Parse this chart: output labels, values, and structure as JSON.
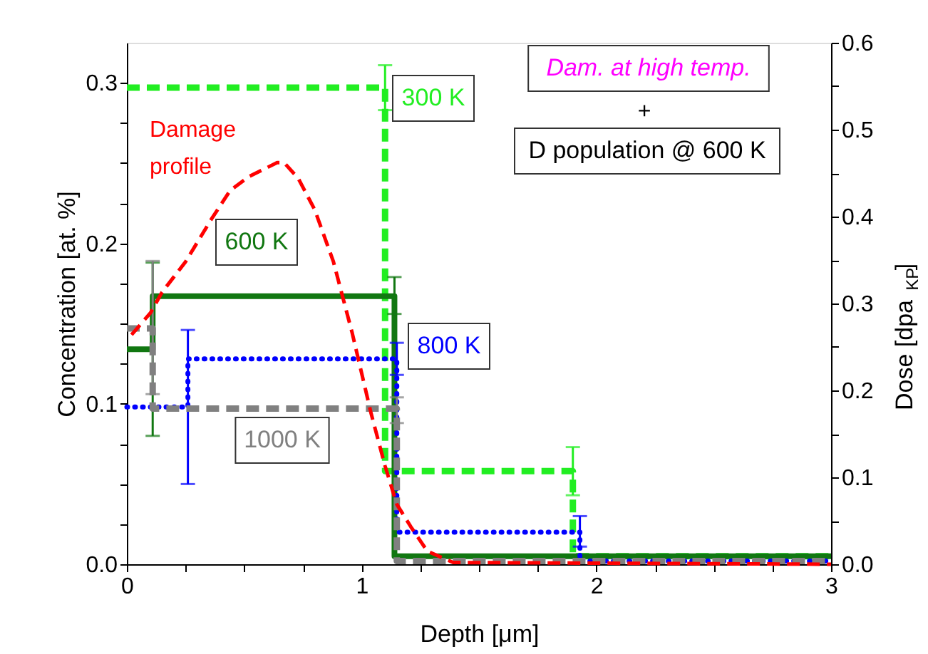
{
  "chart_data": {
    "type": "line",
    "xlabel": "Depth [μm]",
    "ylabel": "Concentration [at. %]",
    "y2label": "Dose [dpa$_{KP}$]",
    "xlim": [
      0,
      3
    ],
    "xticks": [
      0,
      {
        "value": 0.25,
        "label": null
      },
      {
        "value": 0.5,
        "label": null
      },
      {
        "value": 0.75,
        "label": null
      },
      1,
      {
        "value": 1.25,
        "label": null
      },
      {
        "value": 1.5,
        "label": null
      },
      {
        "value": 1.75,
        "label": null
      },
      2,
      {
        "value": 2.25,
        "label": null
      },
      {
        "value": 2.5,
        "label": null
      },
      {
        "value": 2.75,
        "label": null
      },
      3
    ],
    "ylim": [
      0,
      0.325
    ],
    "yticks": [
      {
        "value": 0,
        "label": "0.0"
      },
      {
        "value": 0.025,
        "label": null
      },
      0.1,
      {
        "value": 0.05,
        "label": null
      },
      {
        "value": 0.075,
        "label": null
      },
      {
        "value": 0.125,
        "label": null
      },
      0.2,
      {
        "value": 0.15,
        "label": null
      },
      {
        "value": 0.175,
        "label": null
      },
      {
        "value": 0.225,
        "label": null
      },
      0.3,
      {
        "value": 0.25,
        "label": null
      },
      {
        "value": 0.275,
        "label": null
      }
    ],
    "y2lim": [
      0,
      0.6
    ],
    "y2ticks": [
      {
        "value": 0,
        "label": "0.0"
      },
      {
        "value": 0.05,
        "label": null
      },
      0.1,
      {
        "value": 0.15,
        "label": null
      },
      0.2,
      {
        "value": 0.25,
        "label": null
      },
      0.3,
      {
        "value": 0.35,
        "label": null
      },
      0.4,
      {
        "value": 0.45,
        "label": null
      },
      0.5,
      {
        "value": 0.55,
        "label": null
      },
      0.6
    ],
    "grid": false,
    "marker": "none",
    "annotations": [
      "Dam. at high temp.",
      "+",
      "D population @ 600 K"
    ],
    "series": [
      {
        "name": "300 K",
        "color": "#22ee22",
        "line_style": "dashed",
        "x": [
          0,
          1.1,
          1.1,
          1.9,
          1.9,
          3
        ],
        "values": [
          0.297,
          0.297,
          0.058,
          0.058,
          0.005,
          0.005
        ],
        "errors": [
          null,
          [
            0.283,
            0.311
          ],
          null,
          [
            0.043,
            0.073
          ],
          null,
          null
        ]
      },
      {
        "name": "600 K",
        "color": "#117711",
        "line_style": "solid",
        "x": [
          0,
          0.11,
          0.11,
          1.14,
          1.14,
          3
        ],
        "values": [
          0.134,
          0.134,
          0.167,
          0.167,
          0.005,
          0.005
        ],
        "errors": [
          null,
          [
            0.08,
            0.188
          ],
          null,
          [
            0.156,
            0.179
          ],
          null,
          null
        ]
      },
      {
        "name": "800 K",
        "color": "#0000ff",
        "line_style": "dotted",
        "x": [
          0,
          0.26,
          0.26,
          1.15,
          1.15,
          1.93,
          1.93,
          3
        ],
        "values": [
          0.098,
          0.098,
          0.128,
          0.128,
          0.02,
          0.02,
          0.002,
          0.002
        ],
        "errors": [
          null,
          [
            0.05,
            0.146
          ],
          null,
          [
            0.118,
            0.138
          ],
          null,
          [
            0.011,
            0.03
          ],
          null,
          null
        ]
      },
      {
        "name": "1000 K",
        "color": "#808080",
        "line_style": "dashed",
        "x": [
          0,
          0.11,
          0.11,
          1.15,
          1.15,
          3
        ],
        "values": [
          0.147,
          0.147,
          0.097,
          0.097,
          0.002,
          0.002
        ],
        "errors": [
          null,
          [
            0.106,
            0.189
          ],
          null,
          [
            0.088,
            0.104
          ],
          null,
          null
        ]
      },
      {
        "name": "Damage profile",
        "color": "#ff0000",
        "line_style": "dashed",
        "axis": "y2",
        "x": [
          0.02,
          0.1,
          0.15,
          0.25,
          0.36,
          0.44,
          0.52,
          0.64,
          0.67,
          0.73,
          0.8,
          0.88,
          0.96,
          1.04,
          1.1,
          1.15,
          1.21,
          1.28,
          1.39,
          3
        ],
        "values": [
          0.264,
          0.289,
          0.313,
          0.348,
          0.397,
          0.43,
          0.446,
          0.462,
          0.462,
          0.444,
          0.408,
          0.348,
          0.266,
          0.174,
          0.113,
          0.069,
          0.043,
          0.015,
          0.002,
          0
        ]
      }
    ]
  }
}
